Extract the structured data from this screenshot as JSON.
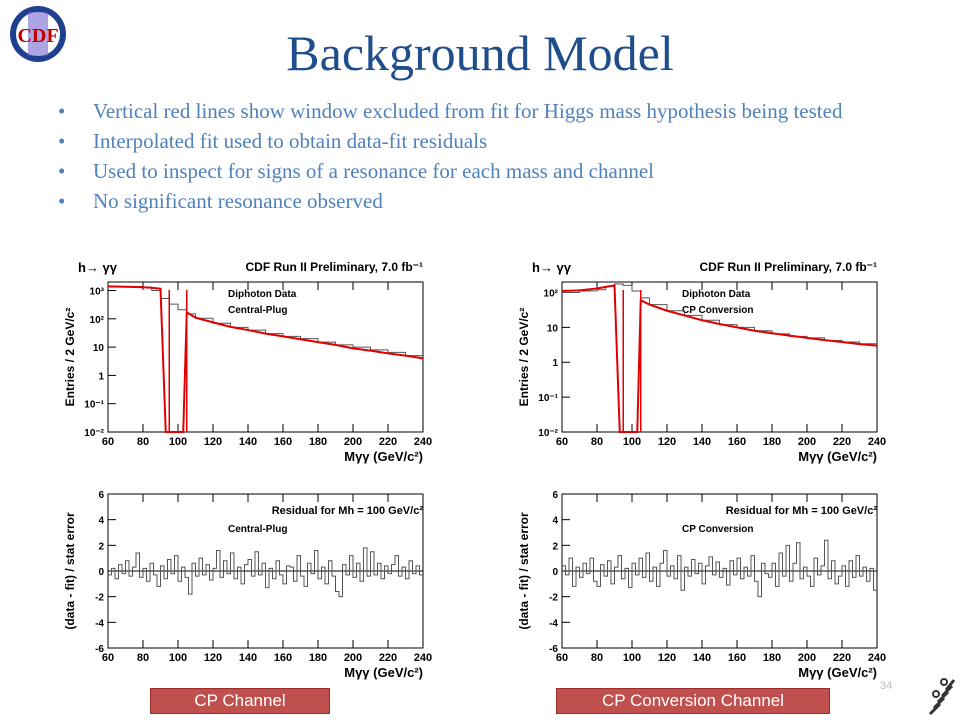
{
  "slide": {
    "title": "Background Model",
    "bullets": [
      "Vertical red lines show window excluded from fit for Higgs mass hypothesis being tested",
      "Interpolated fit used to obtain data-fit residuals",
      "Used to inspect for signs of a resonance for each mass and channel",
      "No significant resonance observed"
    ],
    "page_number": "34",
    "badges": [
      "CP Channel",
      "CP Conversion Channel"
    ],
    "logo_text": "CDF",
    "colors": {
      "title": "#1f4e8c",
      "bullets": "#4f81bd",
      "badge": "#c0504d",
      "fit": "#e00000"
    }
  },
  "chart_data": [
    {
      "type": "line",
      "id": "cp-spectrum",
      "process": "h→ γγ",
      "header": "CDF Run II Preliminary, 7.0 fb⁻¹",
      "legend": [
        "Diphoton Data",
        "Central-Plug"
      ],
      "xlabel": "Mγγ (GeV/c²)",
      "ylabel": "Entries / 2 GeV/c²",
      "log_y": true,
      "xlim": [
        60,
        240
      ],
      "ylim": [
        0.01,
        2000
      ],
      "x_ticks": [
        "60",
        "80",
        "100",
        "120",
        "140",
        "160",
        "180",
        "200",
        "220",
        "240"
      ],
      "y_ticks": [
        "10⁻²",
        "10⁻¹",
        "1",
        "10",
        "10²",
        "10³"
      ],
      "excluded_window": [
        95,
        105
      ],
      "series": [
        {
          "kind": "data",
          "x": [
            60,
            70,
            80,
            85,
            90,
            95,
            100,
            105,
            110,
            120,
            130,
            140,
            150,
            160,
            170,
            180,
            190,
            200,
            210,
            220,
            230,
            240
          ],
          "y": [
            1400,
            1380,
            1300,
            1000,
            520,
            330,
            210,
            150,
            105,
            70,
            50,
            40,
            30,
            24,
            20,
            15,
            12,
            10,
            8,
            6.5,
            5,
            4
          ]
        },
        {
          "kind": "fit",
          "x": [
            60,
            70,
            80,
            85,
            90,
            93,
            95,
            100,
            103,
            105,
            110,
            120,
            130,
            140,
            150,
            160,
            170,
            180,
            190,
            200,
            210,
            220,
            230,
            240
          ],
          "y": [
            1400,
            1360,
            1300,
            1250,
            1150,
            0.01,
            0.01,
            0.01,
            0.01,
            170,
            110,
            75,
            52,
            40,
            30,
            24,
            19,
            15,
            12,
            9,
            7.5,
            6,
            5,
            4
          ]
        }
      ]
    },
    {
      "type": "line",
      "id": "conv-spectrum",
      "process": "h→ γγ",
      "header": "CDF Run II Preliminary, 7.0 fb⁻¹",
      "legend": [
        "Diphoton Data",
        "CP Conversion"
      ],
      "xlabel": "Mγγ (GeV/c²)",
      "ylabel": "Entries / 2 GeV/c²",
      "log_y": true,
      "xlim": [
        60,
        240
      ],
      "ylim": [
        0.01,
        200
      ],
      "x_ticks": [
        "60",
        "80",
        "100",
        "120",
        "140",
        "160",
        "180",
        "200",
        "220",
        "240"
      ],
      "y_ticks": [
        "10⁻²",
        "10⁻¹",
        "1",
        "10",
        "10²"
      ],
      "excluded_window": [
        95,
        105
      ],
      "series": [
        {
          "kind": "data",
          "x": [
            60,
            70,
            80,
            85,
            90,
            95,
            100,
            105,
            110,
            120,
            130,
            140,
            150,
            160,
            170,
            180,
            190,
            200,
            210,
            220,
            230,
            240
          ],
          "y": [
            100,
            110,
            120,
            150,
            175,
            160,
            110,
            70,
            45,
            30,
            22,
            16,
            12,
            10,
            8,
            6.5,
            5.5,
            5,
            4.2,
            3.8,
            3.4,
            3
          ]
        },
        {
          "kind": "fit",
          "x": [
            60,
            70,
            80,
            85,
            90,
            93,
            95,
            100,
            103,
            105,
            110,
            120,
            130,
            140,
            150,
            160,
            170,
            180,
            190,
            200,
            210,
            220,
            230,
            240
          ],
          "y": [
            110,
            115,
            130,
            145,
            160,
            0.01,
            0.01,
            0.01,
            0.01,
            60,
            45,
            30,
            22,
            16,
            12.5,
            10,
            8,
            6.8,
            5.8,
            5,
            4.3,
            3.8,
            3.3,
            3
          ]
        }
      ]
    },
    {
      "type": "bar",
      "id": "cp-residual",
      "header": "Residual for Mh = 100 GeV/c²",
      "legend": [
        "Central-Plug"
      ],
      "xlabel": "Mγγ (GeV/c²)",
      "ylabel": "(data - fit) / stat error",
      "xlim": [
        60,
        240
      ],
      "ylim": [
        -6,
        6
      ],
      "x_ticks": [
        "60",
        "80",
        "100",
        "120",
        "140",
        "160",
        "180",
        "200",
        "220",
        "240"
      ],
      "y_ticks": [
        "-6",
        "-4",
        "-2",
        "0",
        "2",
        "4",
        "6"
      ],
      "bin_start": 60,
      "bin_width": 2,
      "values": [
        -0.3,
        0.2,
        -0.6,
        0.5,
        -0.2,
        0.8,
        -0.4,
        0.3,
        1.4,
        -0.5,
        0.2,
        -0.8,
        0.6,
        -0.3,
        -1.2,
        0.4,
        -0.6,
        0.9,
        -0.2,
        1.2,
        -0.8,
        0.3,
        -0.5,
        -1.8,
        0.6,
        -0.4,
        1.0,
        -0.3,
        0.5,
        -0.7,
        0.2,
        1.6,
        -0.5,
        0.8,
        -0.2,
        1.4,
        -0.6,
        0.3,
        -1.0,
        0.5,
        0.9,
        -0.4,
        1.5,
        -0.3,
        0.6,
        -1.3,
        0.2,
        -0.6,
        0.8,
        -0.3,
        -1.0,
        0.4,
        0.3,
        -0.8,
        1.2,
        -0.4,
        -1.2,
        0.6,
        -0.2,
        1.6,
        -0.6,
        0.3,
        -1.0,
        0.8,
        -0.4,
        -1.6,
        -2.0,
        0.5,
        -0.3,
        1.2,
        -0.5,
        0.6,
        -0.8,
        1.8,
        -0.4,
        1.5,
        -0.3,
        0.6,
        -0.6,
        0.4,
        -0.2,
        0.5,
        1.2,
        -0.4,
        0.3,
        -0.6,
        0.8,
        -0.2,
        0.4,
        -0.3
      ]
    },
    {
      "type": "bar",
      "id": "conv-residual",
      "header": "Residual for Mh = 100 GeV/c²",
      "legend": [
        "CP Conversion"
      ],
      "xlabel": "Mγγ (GeV/c²)",
      "ylabel": "(data - fit) / stat error",
      "xlim": [
        60,
        240
      ],
      "ylim": [
        -6,
        6
      ],
      "x_ticks": [
        "60",
        "80",
        "100",
        "120",
        "140",
        "160",
        "180",
        "200",
        "220",
        "240"
      ],
      "y_ticks": [
        "-6",
        "-4",
        "-2",
        "0",
        "2",
        "4",
        "6"
      ],
      "bin_start": 60,
      "bin_width": 2,
      "values": [
        0.4,
        -0.3,
        1.0,
        -1.2,
        0.3,
        -0.5,
        0.6,
        -0.2,
        1.0,
        -0.8,
        -1.2,
        0.5,
        -0.4,
        0.8,
        -1.0,
        0.3,
        1.2,
        -0.6,
        0.2,
        -1.3,
        0.6,
        -0.3,
        1.0,
        -0.5,
        1.4,
        -0.8,
        0.3,
        -1.2,
        0.6,
        1.6,
        -0.4,
        0.4,
        -0.6,
        1.2,
        -1.5,
        0.3,
        -0.4,
        0.9,
        -0.2,
        0.6,
        -1.0,
        0.4,
        1.1,
        -0.3,
        0.7,
        -0.5,
        0.2,
        -1.1,
        0.8,
        -0.3,
        1.0,
        -0.6,
        0.3,
        -0.4,
        1.2,
        -0.8,
        -2.0,
        0.6,
        -0.2,
        -0.5,
        0.6,
        -1.2,
        1.4,
        -0.4,
        2.0,
        -0.8,
        0.6,
        2.2,
        -0.6,
        0.3,
        -0.4,
        -1.2,
        1.0,
        -0.3,
        0.4,
        2.4,
        -0.6,
        0.8,
        -1.0,
        -0.4,
        0.4,
        -1.2,
        0.8,
        -0.5,
        1.2,
        -0.4,
        0.3,
        -0.8,
        0.2,
        -1.5
      ]
    }
  ]
}
